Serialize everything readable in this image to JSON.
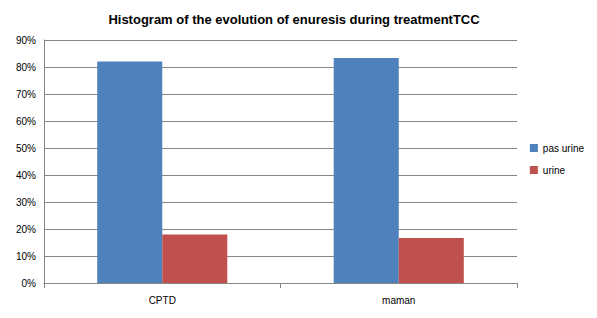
{
  "chart_data": {
    "type": "bar",
    "title": "Histogram of the evolution of enuresis during treatmentTCC",
    "categories": [
      "CPTD",
      "maman"
    ],
    "series": [
      {
        "name": "pas urine",
        "color": "#4f81bd",
        "values": [
          82,
          83.3
        ]
      },
      {
        "name": "urine",
        "color": "#c0504d",
        "values": [
          18,
          16.7
        ]
      }
    ],
    "ylim": [
      0,
      90
    ],
    "yticks": [
      {
        "value": 0,
        "label": "0%"
      },
      {
        "value": 10,
        "label": "10%"
      },
      {
        "value": 20,
        "label": "20%"
      },
      {
        "value": 30,
        "label": "30%"
      },
      {
        "value": 40,
        "label": "40%"
      },
      {
        "value": 50,
        "label": "50%"
      },
      {
        "value": 60,
        "label": "60%"
      },
      {
        "value": 70,
        "label": "70%"
      },
      {
        "value": 80,
        "label": "80%"
      },
      {
        "value": 90,
        "label": "90%"
      }
    ],
    "grid": true,
    "legend": "right"
  }
}
